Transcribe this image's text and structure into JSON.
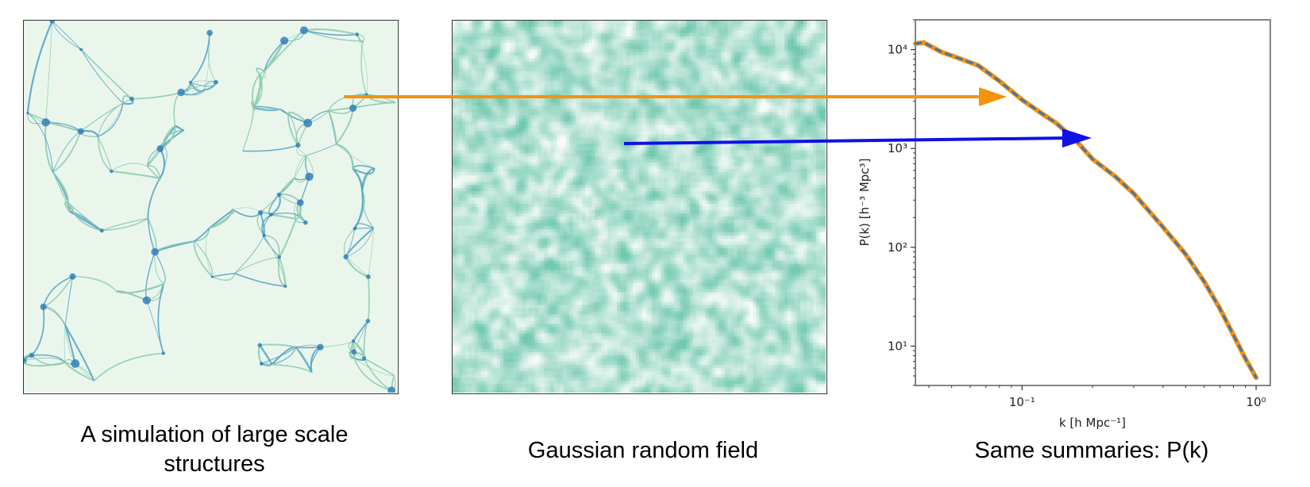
{
  "captions": {
    "simulation": "A simulation of large scale structures",
    "gaussian": "Gaussian random field",
    "summary": "Same summaries: P(k)"
  },
  "colors": {
    "orange": "#f5920f",
    "blue": "#1010e8",
    "curve_dash": "#3a78b0",
    "map_light": "#eaf6ec",
    "map_mid": "#9dd6bd",
    "map_dark": "#2a7ab8"
  },
  "chart_data": {
    "type": "line",
    "title": "",
    "xlabel": "k [h Mpc⁻¹]",
    "ylabel": "P(k) [h⁻³ Mpc³]",
    "xscale": "log",
    "yscale": "log",
    "xlim": [
      0.035,
      1.15
    ],
    "ylim": [
      4,
      20000
    ],
    "x_ticks": [
      0.1,
      1
    ],
    "x_tick_labels": [
      "10⁻¹",
      "10⁰"
    ],
    "y_ticks": [
      10,
      100,
      1000,
      10000
    ],
    "y_tick_labels": [
      "10¹",
      "10²",
      "10³",
      "10⁴"
    ],
    "grid": false,
    "legend": "none",
    "series": [
      {
        "color": "#f5920f",
        "style": "solid",
        "x": [
          0.035,
          0.038,
          0.045,
          0.055,
          0.065,
          0.08,
          0.1,
          0.12,
          0.14,
          0.17,
          0.2,
          0.25,
          0.3,
          0.4,
          0.5,
          0.6,
          0.7,
          0.8,
          0.9,
          1.0
        ],
        "y": [
          11500,
          11800,
          9500,
          8000,
          6900,
          4800,
          3100,
          2300,
          1800,
          1200,
          780,
          520,
          350,
          160,
          85,
          45,
          24,
          13,
          7.5,
          4.8
        ]
      },
      {
        "color": "#3a78b0",
        "style": "dashed",
        "x": [
          0.035,
          0.038,
          0.045,
          0.055,
          0.065,
          0.08,
          0.1,
          0.12,
          0.14,
          0.17,
          0.2,
          0.25,
          0.3,
          0.4,
          0.5,
          0.6,
          0.7,
          0.8,
          0.9,
          1.0
        ],
        "y": [
          11500,
          11800,
          9500,
          8000,
          6900,
          4800,
          3100,
          2300,
          1800,
          1200,
          780,
          520,
          350,
          160,
          85,
          45,
          24,
          13,
          7.5,
          4.8
        ]
      }
    ]
  }
}
